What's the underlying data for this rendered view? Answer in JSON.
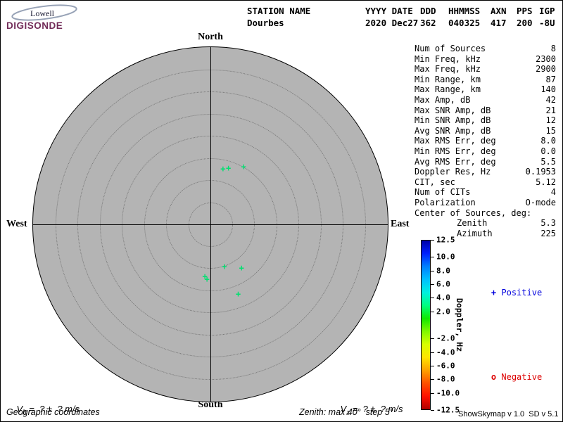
{
  "app": {
    "version_line": "ShowSkymap v 1.0  SD v 5.1"
  },
  "logo": {
    "name": "Lowell",
    "product": "DIGISONDE"
  },
  "header": {
    "station": {
      "label": "STATION NAME",
      "value": "Dourbes"
    },
    "date": {
      "label": "YYYY DATE",
      "value": "2020 Dec27"
    },
    "doy": {
      "label": "DDD",
      "value": "362"
    },
    "time": {
      "label": "HHMMSS",
      "value": "040325"
    },
    "axn": {
      "label": "AXN",
      "value": "417"
    },
    "pps": {
      "label": "PPS",
      "value": "200"
    },
    "igp": {
      "label": "IGP",
      "value": "-8U"
    }
  },
  "parameters": [
    {
      "label": "Num of Sources",
      "value": "8",
      "indent": false
    },
    {
      "label": "Min Freq, kHz",
      "value": "2300",
      "indent": false
    },
    {
      "label": "Max Freq, kHz",
      "value": "2900",
      "indent": false
    },
    {
      "label": "Min Range, km",
      "value": "87",
      "indent": false
    },
    {
      "label": "Max Range, km",
      "value": "140",
      "indent": false
    },
    {
      "label": "Max Amp, dB",
      "value": "42",
      "indent": false
    },
    {
      "label": "Max SNR Amp, dB",
      "value": "21",
      "indent": false
    },
    {
      "label": "Min SNR Amp, dB",
      "value": "12",
      "indent": false
    },
    {
      "label": "Avg SNR Amp, dB",
      "value": "15",
      "indent": false
    },
    {
      "label": "Max RMS Err, deg",
      "value": "8.0",
      "indent": false
    },
    {
      "label": "Min RMS Err, deg",
      "value": "0.0",
      "indent": false
    },
    {
      "label": "Avg RMS Err, deg",
      "value": "5.5",
      "indent": false
    },
    {
      "label": "Doppler Res, Hz",
      "value": "0.1953",
      "indent": false
    },
    {
      "label": "CIT, sec",
      "value": "5.12",
      "indent": false
    },
    {
      "label": "Num of CITs",
      "value": "4",
      "indent": false
    },
    {
      "label": "Polarization",
      "value": "O-mode",
      "indent": false
    },
    {
      "label": "Center of Sources, deg:",
      "value": "",
      "indent": false
    },
    {
      "label": "Zenith",
      "value": "5.3",
      "indent": true
    },
    {
      "label": "Azimuth",
      "value": "225",
      "indent": true
    }
  ],
  "chart_data": {
    "type": "scatter",
    "projection": "polar-skymap",
    "compass": {
      "north": "North",
      "south": "South",
      "east": "East",
      "west": "West"
    },
    "max_zenith_deg": 40,
    "zenith_step_deg": 5,
    "rings_deg": [
      5,
      10,
      15,
      20,
      25,
      30,
      35,
      40
    ],
    "points": [
      {
        "azimuth_deg": 12.7,
        "zenith_deg": 12.9,
        "symbol": "+",
        "sign": "positive",
        "color": "#00e070"
      },
      {
        "azimuth_deg": 17.8,
        "zenith_deg": 13.3,
        "symbol": "+",
        "sign": "positive",
        "color": "#00e070"
      },
      {
        "azimuth_deg": 30.0,
        "zenith_deg": 15.0,
        "symbol": "+",
        "sign": "positive",
        "color": "#00e070"
      },
      {
        "azimuth_deg": 161.8,
        "zenith_deg": 10.1,
        "symbol": "+",
        "sign": "positive",
        "color": "#00e070"
      },
      {
        "azimuth_deg": 144.5,
        "zenith_deg": 12.1,
        "symbol": "+",
        "sign": "positive",
        "color": "#00e070"
      },
      {
        "azimuth_deg": 186.1,
        "zenith_deg": 11.8,
        "symbol": "+",
        "sign": "positive",
        "color": "#00e070"
      },
      {
        "azimuth_deg": 183.6,
        "zenith_deg": 12.4,
        "symbol": "+",
        "sign": "positive",
        "color": "#00e070"
      },
      {
        "azimuth_deg": 158.2,
        "zenith_deg": 16.9,
        "symbol": "+",
        "sign": "positive",
        "color": "#00e070"
      }
    ],
    "colorbar": {
      "title": "Doppler, Hz",
      "range": [
        -12.5,
        12.5
      ],
      "ticks": [
        "12.5",
        "10.0",
        "8.0",
        "6.0",
        "4.0",
        "2.0",
        "-2.0",
        "-4.0",
        "-6.0",
        "-8.0",
        "-10.0",
        "-12.5"
      ],
      "gradient_top_to_bottom": [
        "#0000a8",
        "#0020ff",
        "#0080ff",
        "#00c0ff",
        "#00f0e0",
        "#00ff80",
        "#10e800",
        "#80f800",
        "#d8ff00",
        "#ffe400",
        "#ffa000",
        "#ff5000",
        "#ff1000",
        "#b00000"
      ],
      "legend": {
        "positive": {
          "symbol": "+",
          "label": "Positive",
          "color": "#0000dd"
        },
        "negative": {
          "symbol": "o",
          "label": "Negative",
          "color": "#dd0000"
        }
      }
    }
  },
  "footer": {
    "vh": {
      "var": "V",
      "sub": "h",
      "rest": " =  ? ±  ? m/s"
    },
    "vz": {
      "var": "V",
      "sub": "z",
      "rest": " =  ? ±  ? m/s"
    },
    "coordinates_note": "Geographic coordinates",
    "zenith_note": "Zenith: max 40°  step 5°"
  }
}
